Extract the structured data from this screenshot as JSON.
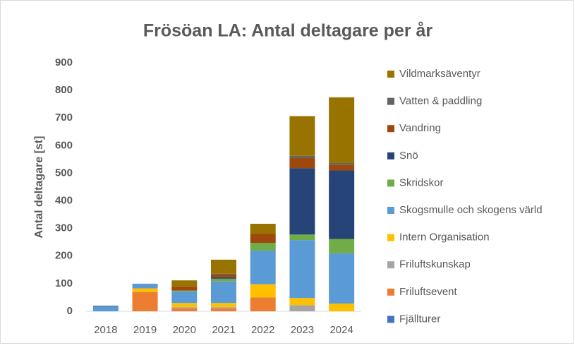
{
  "chart_data": {
    "type": "stacked_bar",
    "title": "Frösöan LA: Antal deltagare per år",
    "y_label": "Antal deltagare [st]",
    "categories": [
      "2018",
      "2019",
      "2020",
      "2021",
      "2022",
      "2023",
      "2024"
    ],
    "series": [
      {
        "name": "Fjällturer",
        "color": "#4472c4",
        "values": [
          0,
          0,
          0,
          0,
          0,
          0,
          0
        ]
      },
      {
        "name": "Friluftsevent",
        "color": "#ed7d31",
        "values": [
          0,
          70,
          10,
          10,
          50,
          0,
          0
        ]
      },
      {
        "name": "Friluftskunskap",
        "color": "#a5a5a5",
        "values": [
          0,
          0,
          5,
          5,
          0,
          22,
          0
        ]
      },
      {
        "name": "Intern Organisation",
        "color": "#ffc000",
        "values": [
          0,
          13,
          15,
          15,
          48,
          26,
          28
        ]
      },
      {
        "name": "Skogsmulle och skogens värld",
        "color": "#5b9bd5",
        "values": [
          18,
          17,
          42,
          78,
          122,
          210,
          182
        ]
      },
      {
        "name": "Skridskor",
        "color": "#70ad47",
        "values": [
          0,
          0,
          3,
          10,
          28,
          20,
          52
        ]
      },
      {
        "name": "Snö",
        "color": "#264478",
        "values": [
          2,
          0,
          0,
          5,
          0,
          240,
          248
        ]
      },
      {
        "name": "Vandring",
        "color": "#9e480e",
        "values": [
          0,
          0,
          15,
          10,
          32,
          37,
          20
        ]
      },
      {
        "name": "Vatten & paddling",
        "color": "#636363",
        "values": [
          0,
          0,
          0,
          3,
          0,
          8,
          7
        ]
      },
      {
        "name": "Vildmarksäventyr",
        "color": "#997300",
        "values": [
          0,
          0,
          22,
          51,
          37,
          144,
          238
        ]
      }
    ],
    "ylim": [
      0,
      900
    ],
    "yticks": [
      0,
      100,
      200,
      300,
      400,
      500,
      600,
      700,
      800,
      900
    ],
    "grid": false
  }
}
